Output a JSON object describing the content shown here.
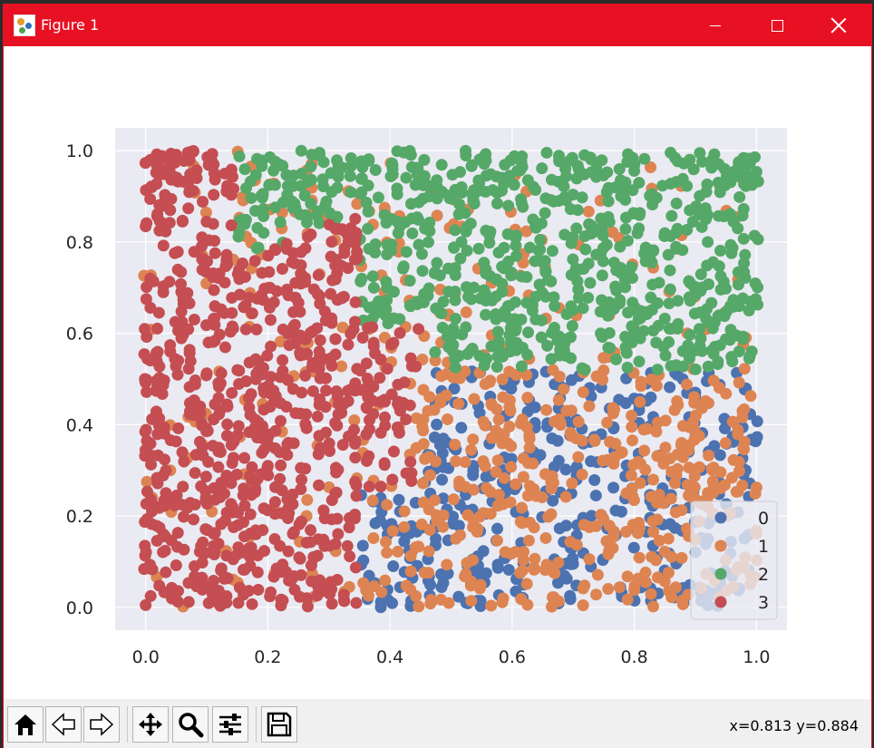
{
  "window": {
    "title": "Figure 1",
    "controls": [
      "minimize",
      "maximize",
      "close"
    ]
  },
  "toolbar": {
    "buttons": [
      {
        "name": "home-icon",
        "tooltip": "Reset original view"
      },
      {
        "name": "back-arrow-icon",
        "tooltip": "Back"
      },
      {
        "name": "forward-arrow-icon",
        "tooltip": "Forward"
      },
      {
        "name": "pan-icon",
        "tooltip": "Pan"
      },
      {
        "name": "zoom-icon",
        "tooltip": "Zoom"
      },
      {
        "name": "configure-subplots-icon",
        "tooltip": "Configure subplots"
      },
      {
        "name": "save-icon",
        "tooltip": "Save"
      }
    ],
    "coordinates": "x=0.813 y=0.884"
  },
  "chart_data": {
    "type": "scatter",
    "title": "",
    "xlabel": "",
    "ylabel": "",
    "xlim": [
      -0.05,
      1.05
    ],
    "ylim": [
      -0.05,
      1.05
    ],
    "xticks": [
      "0.0",
      "0.2",
      "0.4",
      "0.6",
      "0.8",
      "1.0"
    ],
    "yticks": [
      "0.0",
      "0.2",
      "0.4",
      "0.6",
      "0.8",
      "1.0"
    ],
    "grid": true,
    "background": "#eaeaf2",
    "legend_position": "lower-right",
    "series": [
      {
        "name": "0",
        "color": "#4c72b0",
        "region": "x >= 0.35, y <= 0.5"
      },
      {
        "name": "1",
        "color": "#dd8452",
        "region": "scattered, concentrated x 0.3-1.0, y 0-0.5"
      },
      {
        "name": "2",
        "color": "#55a868",
        "region": "x >= 0.15, y >= 0.5"
      },
      {
        "name": "3",
        "color": "#c44e52",
        "region": "x <= 0.45, all y"
      }
    ]
  }
}
